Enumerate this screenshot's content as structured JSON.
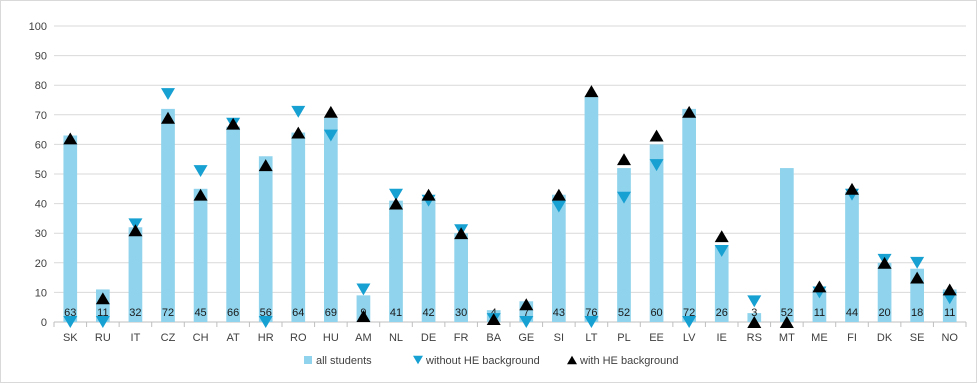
{
  "chart_data": {
    "type": "bar",
    "title": "",
    "xlabel": "",
    "ylabel": "",
    "ylim": [
      0,
      100
    ],
    "yticks": [
      0,
      10,
      20,
      30,
      40,
      50,
      60,
      70,
      80,
      90,
      100
    ],
    "grid": true,
    "legend_position": "bottom",
    "categories": [
      "SK",
      "RU",
      "IT",
      "CZ",
      "CH",
      "AT",
      "HR",
      "RO",
      "HU",
      "AM",
      "NL",
      "DE",
      "FR",
      "BA",
      "GE",
      "SI",
      "LT",
      "PL",
      "EE",
      "LV",
      "IE",
      "RS",
      "MT",
      "ME",
      "FI",
      "DK",
      "SE",
      "NO"
    ],
    "series": [
      {
        "name": "all students",
        "type": "bar",
        "color": "#8fd3ec",
        "values": [
          63,
          11,
          32,
          72,
          45,
          66,
          56,
          64,
          69,
          9,
          41,
          42,
          30,
          4,
          7,
          43,
          76,
          52,
          60,
          72,
          26,
          3,
          52,
          11,
          44,
          20,
          18,
          11
        ]
      },
      {
        "name": "without HE background",
        "type": "marker",
        "marker": "triangle-down",
        "color": "#17a0d2",
        "values": [
          0,
          0,
          33,
          77,
          51,
          67,
          0,
          71,
          63,
          11,
          43,
          41,
          31,
          1,
          0,
          39,
          0,
          42,
          53,
          0,
          24,
          7,
          null,
          10,
          43,
          21,
          20,
          8
        ]
      },
      {
        "name": "with HE background",
        "type": "marker",
        "marker": "triangle-up",
        "color": "#000000",
        "values": [
          62,
          8,
          31,
          69,
          43,
          67,
          53,
          64,
          71,
          2,
          40,
          43,
          30,
          1,
          6,
          43,
          78,
          55,
          63,
          71,
          29,
          0,
          0,
          12,
          45,
          20,
          15,
          11
        ]
      }
    ]
  }
}
